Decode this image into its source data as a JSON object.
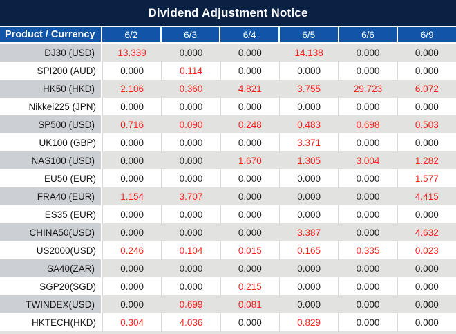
{
  "title": "Dividend Adjustment Notice",
  "table": {
    "product_header": "Product / Currency",
    "dates": [
      "6/2",
      "6/3",
      "6/4",
      "6/5",
      "6/6",
      "6/9"
    ],
    "rows": [
      {
        "product": "DJ30 (USD)",
        "values": [
          "13.339",
          "0.000",
          "0.000",
          "14.138",
          "0.000",
          "0.000"
        ]
      },
      {
        "product": "SPI200 (AUD)",
        "values": [
          "0.000",
          "0.114",
          "0.000",
          "0.000",
          "0.000",
          "0.000"
        ]
      },
      {
        "product": "HK50 (HKD)",
        "values": [
          "2.106",
          "0.360",
          "4.821",
          "3.755",
          "29.723",
          "6.072"
        ]
      },
      {
        "product": "Nikkei225 (JPN)",
        "values": [
          "0.000",
          "0.000",
          "0.000",
          "0.000",
          "0.000",
          "0.000"
        ]
      },
      {
        "product": "SP500 (USD)",
        "values": [
          "0.716",
          "0.090",
          "0.248",
          "0.483",
          "0.698",
          "0.503"
        ]
      },
      {
        "product": "UK100 (GBP)",
        "values": [
          "0.000",
          "0.000",
          "0.000",
          "3.371",
          "0.000",
          "0.000"
        ]
      },
      {
        "product": "NAS100 (USD)",
        "values": [
          "0.000",
          "0.000",
          "1.670",
          "1.305",
          "3.004",
          "1.282"
        ]
      },
      {
        "product": "EU50 (EUR)",
        "values": [
          "0.000",
          "0.000",
          "0.000",
          "0.000",
          "0.000",
          "1.577"
        ]
      },
      {
        "product": "FRA40 (EUR)",
        "values": [
          "1.154",
          "3.707",
          "0.000",
          "0.000",
          "0.000",
          "4.415"
        ]
      },
      {
        "product": "ES35 (EUR)",
        "values": [
          "0.000",
          "0.000",
          "0.000",
          "0.000",
          "0.000",
          "0.000"
        ]
      },
      {
        "product": "CHINA50(USD)",
        "values": [
          "0.000",
          "0.000",
          "0.000",
          "3.387",
          "0.000",
          "4.632"
        ]
      },
      {
        "product": "US2000(USD)",
        "values": [
          "0.246",
          "0.104",
          "0.015",
          "0.165",
          "0.335",
          "0.023"
        ]
      },
      {
        "product": "SA40(ZAR)",
        "values": [
          "0.000",
          "0.000",
          "0.000",
          "0.000",
          "0.000",
          "0.000"
        ]
      },
      {
        "product": "SGP20(SGD)",
        "values": [
          "0.000",
          "0.000",
          "0.215",
          "0.000",
          "0.000",
          "0.000"
        ]
      },
      {
        "product": "TWINDEX(USD)",
        "values": [
          "0.000",
          "0.699",
          "0.081",
          "0.000",
          "0.000",
          "0.000"
        ]
      },
      {
        "product": "HKTECH(HKD)",
        "values": [
          "0.304",
          "4.036",
          "0.000",
          "0.829",
          "0.000",
          "0.000"
        ]
      }
    ]
  },
  "colors": {
    "title_bg": "#0a2143",
    "header_bg": "#1155a8",
    "row_gray_product": "#ccd0d5",
    "row_gray_value": "#e2e2e0",
    "zero_text": "#202020",
    "nonzero_text": "#ff1f1f"
  }
}
